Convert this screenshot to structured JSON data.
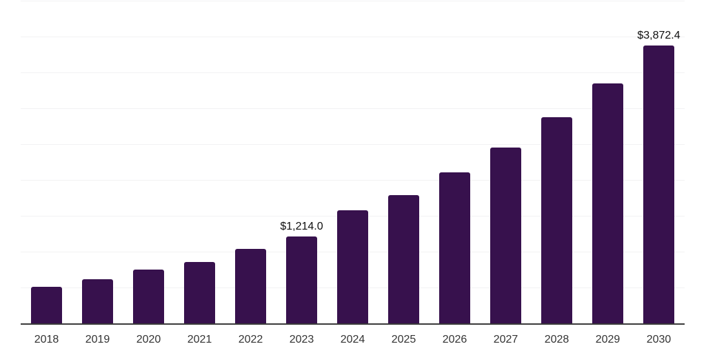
{
  "chart_data": {
    "type": "bar",
    "title": "",
    "xlabel": "",
    "ylabel": "",
    "categories": [
      "2018",
      "2019",
      "2020",
      "2021",
      "2022",
      "2023",
      "2024",
      "2025",
      "2026",
      "2027",
      "2028",
      "2029",
      "2030"
    ],
    "values": [
      510,
      615,
      747,
      856,
      1040,
      1214.0,
      1575,
      1790,
      2105,
      2450,
      2872,
      3350,
      3872.4
    ],
    "data_labels": [
      "",
      "",
      "",
      "",
      "",
      "$1,214.0",
      "",
      "",
      "",
      "",
      "",
      "",
      "$3,872.4"
    ],
    "ylim": [
      0,
      4500
    ],
    "grid_step": 500,
    "grid": true,
    "legend": false,
    "y_tick_labels_visible": false,
    "colors": {
      "bar": "#37114D",
      "grid": "#F2F2F3",
      "axis": "#3A3A3A",
      "tick_label": "#333333",
      "data_label": "#0F0F0F",
      "background": "#FFFFFF"
    }
  }
}
